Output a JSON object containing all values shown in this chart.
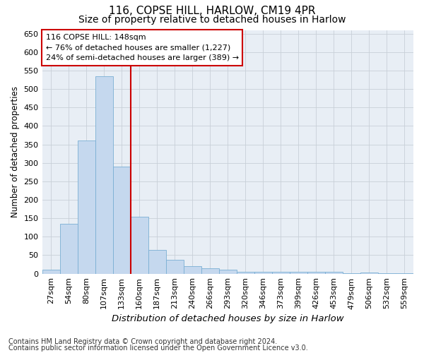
{
  "title1": "116, COPSE HILL, HARLOW, CM19 4PR",
  "title2": "Size of property relative to detached houses in Harlow",
  "xlabel": "Distribution of detached houses by size in Harlow",
  "ylabel": "Number of detached properties",
  "categories": [
    "27sqm",
    "54sqm",
    "80sqm",
    "107sqm",
    "133sqm",
    "160sqm",
    "187sqm",
    "213sqm",
    "240sqm",
    "266sqm",
    "293sqm",
    "320sqm",
    "346sqm",
    "373sqm",
    "399sqm",
    "426sqm",
    "453sqm",
    "479sqm",
    "506sqm",
    "532sqm",
    "559sqm"
  ],
  "values": [
    10,
    135,
    360,
    535,
    290,
    155,
    65,
    38,
    20,
    15,
    10,
    4,
    4,
    4,
    4,
    4,
    4,
    1,
    3,
    1,
    2
  ],
  "bar_color": "#c5d8ee",
  "bar_edge_color": "#7aafd4",
  "reference_line_x": 4.5,
  "reference_line_color": "#cc0000",
  "annotation_text": "116 COPSE HILL: 148sqm\n← 76% of detached houses are smaller (1,227)\n24% of semi-detached houses are larger (389) →",
  "annotation_box_color": "#ffffff",
  "annotation_box_edge_color": "#cc0000",
  "ylim": [
    0,
    660
  ],
  "yticks": [
    0,
    50,
    100,
    150,
    200,
    250,
    300,
    350,
    400,
    450,
    500,
    550,
    600,
    650
  ],
  "footer1": "Contains HM Land Registry data © Crown copyright and database right 2024.",
  "footer2": "Contains public sector information licensed under the Open Government Licence v3.0.",
  "background_color": "#e8eef5",
  "grid_color": "#c8cfd8",
  "title1_fontsize": 11,
  "title2_fontsize": 10,
  "xlabel_fontsize": 9.5,
  "ylabel_fontsize": 8.5,
  "tick_fontsize": 8,
  "annot_fontsize": 8,
  "footer_fontsize": 7
}
